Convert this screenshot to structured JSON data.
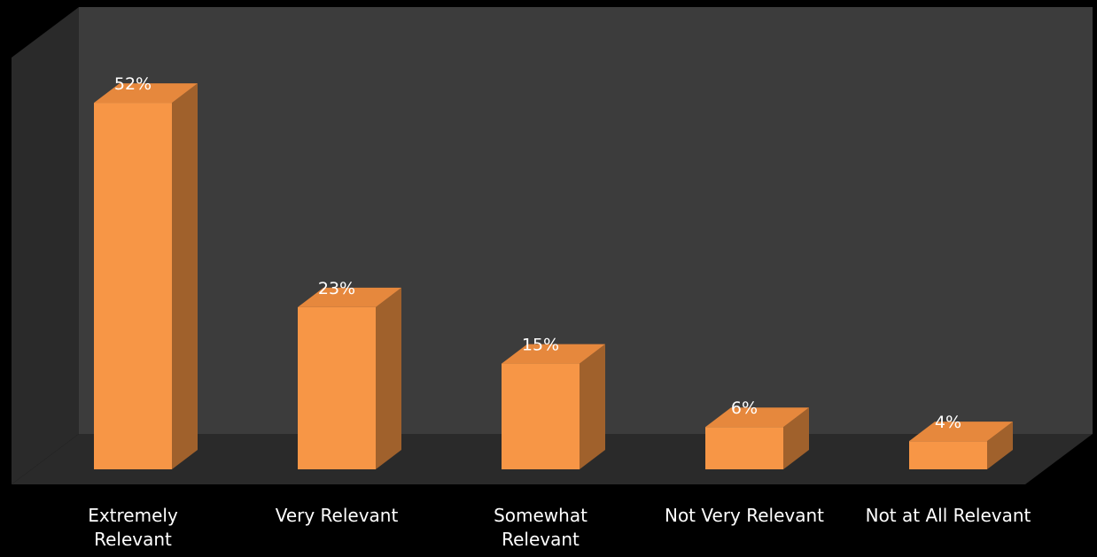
{
  "chart_data": {
    "type": "bar",
    "categories": [
      "Extremely Relevant",
      "Very Relevant",
      "Somewhat Relevant",
      "Not Very Relevant",
      "Not at All Relevant"
    ],
    "values": [
      52,
      23,
      15,
      6,
      4
    ],
    "data_labels": [
      "52%",
      "23%",
      "15%",
      "6%",
      "4%"
    ],
    "value_unit": "%",
    "ylim": [
      0,
      55
    ],
    "grid": false,
    "legend": "none",
    "style": "3d",
    "colors": {
      "bar_front": "#f79646",
      "bar_top": "#e6883d",
      "bar_side": "#a0612c",
      "back_wall": "#3c3c3c",
      "side_wall": "#2a2a2a",
      "floor": "#2a2a2a",
      "background": "#000000",
      "text": "#ffffff"
    }
  }
}
